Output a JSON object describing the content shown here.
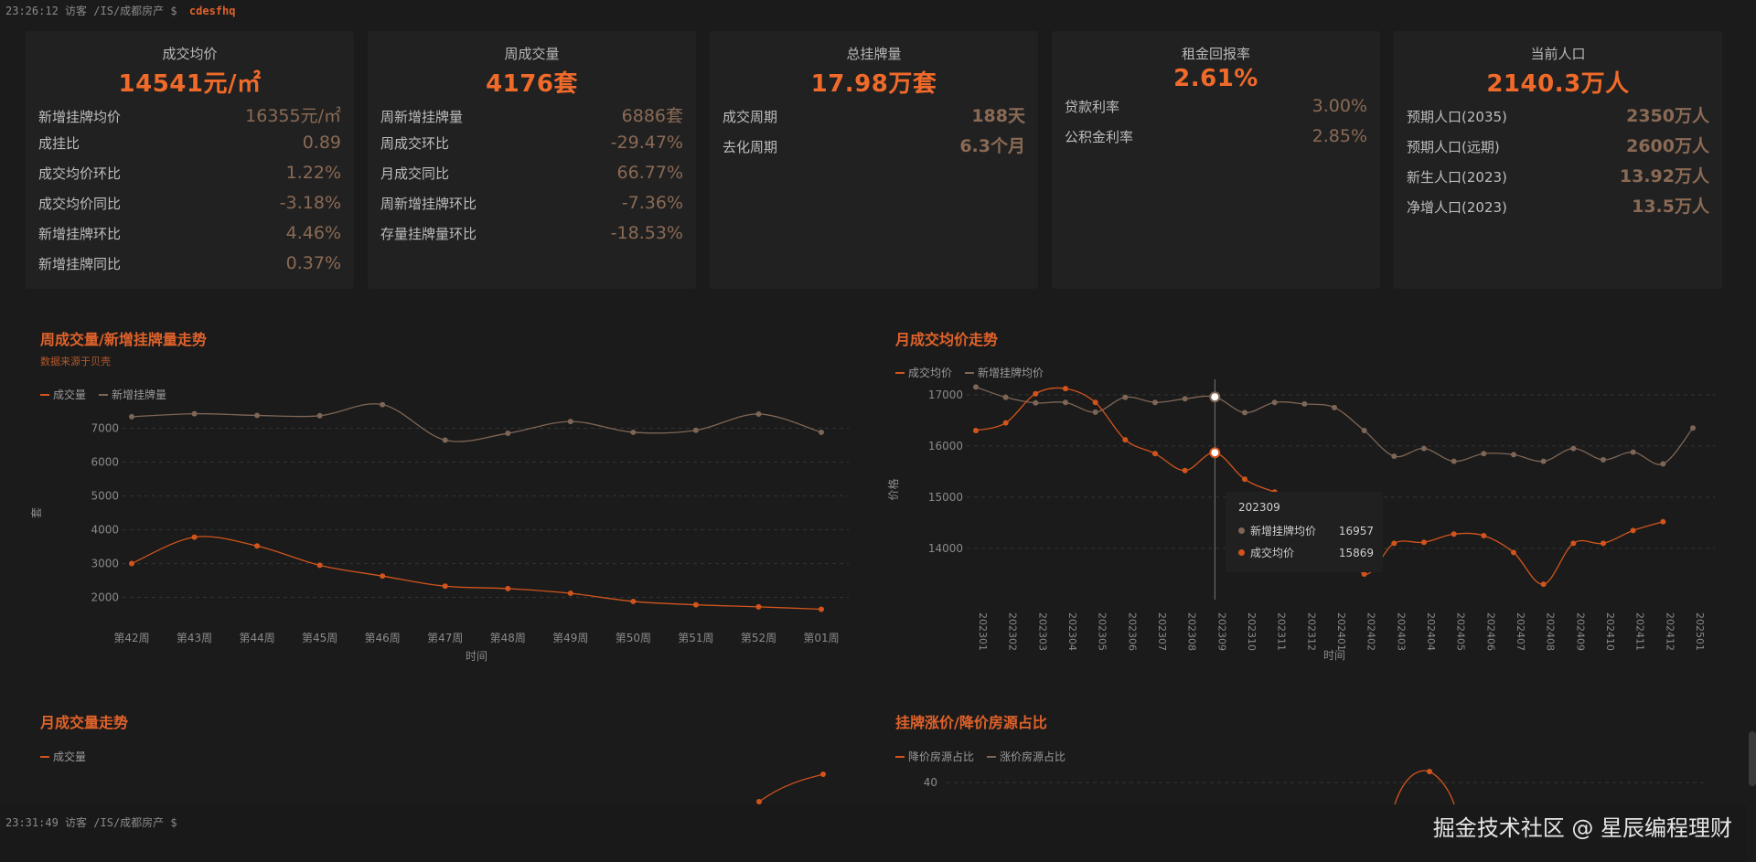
{
  "terminal": {
    "top": {
      "time": "23:26:12",
      "user": "访客",
      "path": "/IS/成都房产",
      "prompt": "$",
      "cmd": "cdesfhq"
    },
    "bottom": {
      "time": "23:31:49",
      "user": "访客",
      "path": "/IS/成都房产",
      "prompt": "$"
    }
  },
  "watermark": "掘金技术社区 @ 星辰编程理财",
  "colors": {
    "accent": "#f06a2a",
    "line_brown": "#8a6a55",
    "series_orange": "#d2541c",
    "series_brown": "#7e6656"
  },
  "cards": [
    {
      "title": "成交均价",
      "value": "14541元/㎡",
      "rows": [
        {
          "label": "新增挂牌均价",
          "value": "16355元/㎡"
        },
        {
          "label": "成挂比",
          "value": "0.89"
        },
        {
          "label": "成交均价环比",
          "value": "1.22%"
        },
        {
          "label": "成交均价同比",
          "value": "-3.18%"
        },
        {
          "label": "新增挂牌环比",
          "value": "4.46%"
        },
        {
          "label": "新增挂牌同比",
          "value": "0.37%"
        }
      ]
    },
    {
      "title": "周成交量",
      "value": "4176套",
      "rows": [
        {
          "label": "周新增挂牌量",
          "value": "6886套"
        },
        {
          "label": "周成交环比",
          "value": "-29.47%"
        },
        {
          "label": "月成交同比",
          "value": "66.77%"
        },
        {
          "label": "周新增挂牌环比",
          "value": "-7.36%"
        },
        {
          "label": "存量挂牌量环比",
          "value": "-18.53%"
        }
      ]
    },
    {
      "title": "总挂牌量",
      "value": "17.98万套",
      "rows": [
        {
          "label": "成交周期",
          "value": "188天"
        },
        {
          "label": "去化周期",
          "value": "6.3个月"
        }
      ]
    },
    {
      "title": "租金回报率",
      "value": "2.61%",
      "rows": [
        {
          "label": "贷款利率",
          "value": "3.00%"
        },
        {
          "label": "公积金利率",
          "value": "2.85%"
        }
      ]
    },
    {
      "title": "当前人口",
      "value": "2140.3万人",
      "rows": [
        {
          "label": "预期人口(2035)",
          "value": "2350万人"
        },
        {
          "label": "预期人口(远期)",
          "value": "2600万人"
        },
        {
          "label": "新生人口(2023)",
          "value": "13.92万人"
        },
        {
          "label": "净增人口(2023)",
          "value": "13.5万人"
        }
      ]
    }
  ],
  "panels": {
    "weekly": {
      "title": "周成交量/新增挂牌量走势",
      "subtitle": "数据来源于贝壳",
      "legend": [
        "成交量",
        "新增挂牌量"
      ]
    },
    "monthly_price": {
      "title": "月成交均价走势",
      "legend": [
        "成交均价",
        "新增挂牌均价"
      ]
    },
    "monthly_volume": {
      "title": "月成交量走势",
      "legend": [
        "成交量"
      ]
    },
    "price_change": {
      "title": "挂牌涨价/降价房源占比",
      "legend": [
        "降价房源占比",
        "涨价房源占比"
      ]
    }
  },
  "tooltip": {
    "header": "202309",
    "rows": [
      {
        "name": "新增挂牌均价",
        "value": "16957",
        "color": "#7e6656"
      },
      {
        "name": "成交均价",
        "value": "15869",
        "color": "#d2541c"
      }
    ]
  },
  "chart_data": [
    {
      "type": "line",
      "title": "周成交量/新增挂牌量走势",
      "xlabel": "时间",
      "ylabel": "套",
      "categories": [
        "第42周",
        "第43周",
        "第44周",
        "第45周",
        "第46周",
        "第47周",
        "第48周",
        "第49周",
        "第50周",
        "第51周",
        "第52周",
        "第01周"
      ],
      "ylim": [
        1500,
        7500
      ],
      "yticks": [
        2000,
        3000,
        4000,
        5000,
        6000,
        7000
      ],
      "series": [
        {
          "name": "成交量",
          "values": [
            3000,
            3780,
            3520,
            2950,
            2630,
            2330,
            2260,
            2120,
            1880,
            1780,
            1720,
            1650
          ]
        },
        {
          "name": "新增挂牌量",
          "values": [
            7340,
            7430,
            7380,
            7370,
            7700,
            6650,
            6850,
            7200,
            6880,
            6940,
            7420,
            6880
          ]
        }
      ],
      "grid": true,
      "legend": "top-left"
    },
    {
      "type": "line",
      "title": "月成交均价走势",
      "xlabel": "时间",
      "ylabel": "价格",
      "categories": [
        "202301",
        "202302",
        "202303",
        "202304",
        "202305",
        "202306",
        "202307",
        "202308",
        "202309",
        "202310",
        "202311",
        "202312",
        "202401",
        "202402",
        "202403",
        "202404",
        "202405",
        "202406",
        "202407",
        "202408",
        "202409",
        "202410",
        "202411",
        "202412",
        "202501"
      ],
      "ylim": [
        13000,
        17300
      ],
      "yticks": [
        14000,
        15000,
        16000,
        17000
      ],
      "series": [
        {
          "name": "成交均价",
          "values": [
            16300,
            16450,
            17020,
            17120,
            16850,
            16120,
            15850,
            15520,
            15869,
            15350,
            15100,
            14900,
            14500,
            13500,
            14100,
            14120,
            14280,
            14250,
            13920,
            13300,
            14100,
            14100,
            14350,
            14520,
            null
          ]
        },
        {
          "name": "新增挂牌均价",
          "values": [
            17150,
            16950,
            16840,
            16850,
            16660,
            16950,
            16850,
            16920,
            16957,
            16650,
            16850,
            16820,
            16750,
            16300,
            15800,
            15950,
            15700,
            15850,
            15830,
            15700,
            15950,
            15730,
            15880,
            15650,
            16350
          ]
        }
      ],
      "grid": true,
      "legend": "top-left"
    },
    {
      "type": "line",
      "title": "月成交量走势",
      "series": [
        {
          "name": "成交量",
          "values": []
        }
      ],
      "legend": "top-left"
    },
    {
      "type": "line",
      "title": "挂牌涨价/降价房源占比",
      "yticks": [
        40
      ],
      "series": [
        {
          "name": "降价房源占比",
          "values": []
        },
        {
          "name": "涨价房源占比",
          "values": []
        }
      ],
      "legend": "top-left"
    }
  ]
}
